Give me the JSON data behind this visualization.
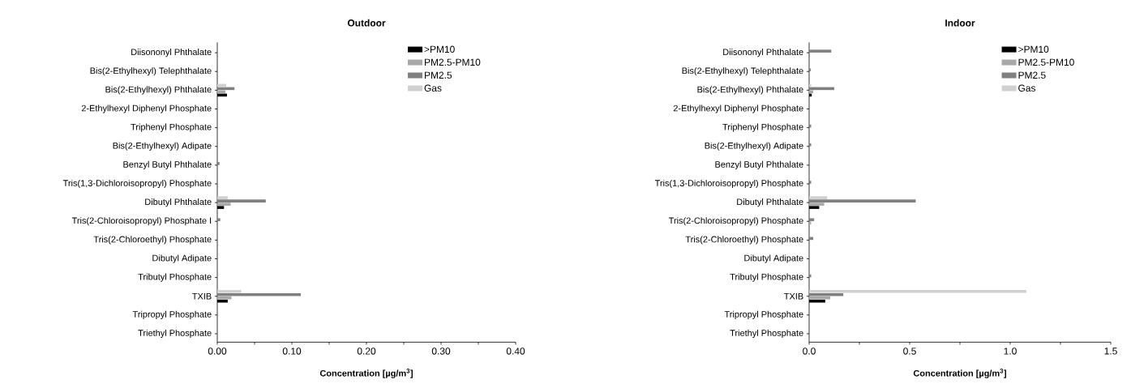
{
  "chart_data": [
    {
      "type": "bar",
      "orientation": "horizontal",
      "title": "Outdoor",
      "xlabel": "Concentration [µg/m$^{3}$]",
      "legend": "top right",
      "categories": [
        "Diisononyl Phthalate",
        "Bis(2-Ethylhexyl) Telephthalate",
        "Bis(2-Ethylhexyl) Phthalate",
        "2-Ethylhexyl Diphenyl Phosphate",
        "Triphenyl Phosphate",
        "Bis(2-Ethylhexyl) Adipate",
        "Benzyl Butyl Phthalate",
        "Tris(1,3-Dichloroisopropyl) Phosphate",
        "Dibutyl Phthalate",
        "Tris(2-Chloroisopropyl) Phosphate I",
        "Tris(2-Chloroethyl) Phosphate",
        "Dibutyl Adipate",
        "Tributyl Phosphate",
        "TXIB",
        "Tripropyl Phosphate",
        "Triethyl Phosphate"
      ],
      "xlim": [
        0,
        0.4
      ],
      "xticks": [
        {
          "value": 0,
          "label": "0.00"
        },
        {
          "value": 0.05,
          "label": null
        },
        {
          "value": 0.1,
          "label": "0.10"
        },
        {
          "value": 0.15,
          "label": null
        },
        {
          "value": 0.2,
          "label": "0.20"
        },
        {
          "value": 0.25,
          "label": null
        },
        {
          "value": 0.3,
          "label": "0.30"
        },
        {
          "value": 0.35,
          "label": null
        },
        {
          "value": 0.4,
          "label": "0.40"
        }
      ],
      "series": [
        {
          "name": ">PM10",
          "color": "#000000",
          "values": [
            0,
            0,
            0.013,
            0,
            0,
            0,
            0,
            0,
            0.009,
            0,
            0,
            0,
            0,
            0.014,
            0,
            0
          ]
        },
        {
          "name": "PM2.5-PM10",
          "color": "#a8a8a8",
          "values": [
            0,
            0,
            0.011,
            0,
            0,
            0,
            0,
            0,
            0.018,
            0,
            0,
            0,
            0,
            0.019,
            0,
            0
          ]
        },
        {
          "name": "PM2.5",
          "color": "#808080",
          "values": [
            0,
            0,
            0.023,
            0,
            0,
            0,
            0.003,
            0,
            0.065,
            0.004,
            0,
            0,
            0,
            0.112,
            0,
            0
          ]
        },
        {
          "name": "Gas",
          "color": "#d0d0d0",
          "values": [
            0,
            0,
            0.012,
            0,
            0,
            0,
            0,
            0,
            0.014,
            0,
            0,
            0,
            0,
            0.032,
            0,
            0
          ]
        }
      ]
    },
    {
      "type": "bar",
      "orientation": "horizontal",
      "title": "Indoor",
      "xlabel": "Concentration [µg/m$^{3}$]",
      "legend": "top right",
      "categories": [
        "Diisononyl Phthalate",
        "Bis(2-Ethylhexyl) Telephthalate",
        "Bis(2-Ethylhexyl) Phthalate",
        "2-Ethylhexyl Diphenyl Phosphate",
        "Triphenyl Phosphate",
        "Bis(2-Ethylhexyl) Adipate",
        "Benzyl Butyl Phthalate",
        "Tris(1,3-Dichloroisopropyl) Phosphate",
        "Dibutyl Phthalate",
        "Tris(2-Chloroisopropyl) Phosphate",
        "Tris(2-Chloroethyl) Phosphate",
        "Dibutyl Adipate",
        "Tributyl Phosphate",
        "TXIB",
        "Tripropyl Phosphate",
        "Triethyl Phosphate"
      ],
      "xlim": [
        0,
        1.5
      ],
      "xticks": [
        {
          "value": 0,
          "label": "0.0"
        },
        {
          "value": 0.25,
          "label": null
        },
        {
          "value": 0.5,
          "label": "0.5"
        },
        {
          "value": 0.75,
          "label": null
        },
        {
          "value": 1,
          "label": "1.0"
        },
        {
          "value": 1.25,
          "label": null
        },
        {
          "value": 1.5,
          "label": "1.5"
        }
      ],
      "series": [
        {
          "name": ">PM10",
          "color": "#000000",
          "values": [
            0,
            0,
            0.013,
            0,
            0,
            0,
            0,
            0,
            0.05,
            0,
            0,
            0,
            0,
            0.08,
            0,
            0
          ]
        },
        {
          "name": "PM2.5-PM10",
          "color": "#a8a8a8",
          "values": [
            0,
            0,
            0.02,
            0,
            0,
            0,
            0,
            0,
            0.075,
            0.01,
            0,
            0,
            0,
            0.105,
            0,
            0
          ]
        },
        {
          "name": "PM2.5",
          "color": "#808080",
          "values": [
            0.11,
            0.008,
            0.125,
            0,
            0.01,
            0.01,
            0,
            0.01,
            0.53,
            0.025,
            0.02,
            0,
            0.01,
            0.17,
            0,
            0
          ]
        },
        {
          "name": "Gas",
          "color": "#d0d0d0",
          "values": [
            0,
            0,
            0.01,
            0,
            0,
            0,
            0,
            0,
            0.09,
            0,
            0,
            0,
            0,
            1.08,
            0,
            0
          ]
        }
      ]
    }
  ]
}
